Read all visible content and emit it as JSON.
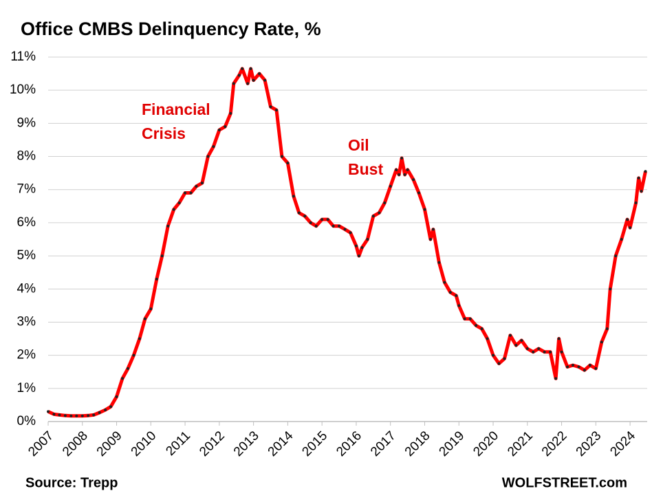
{
  "chart_data": {
    "type": "line",
    "title": "Office CMBS Delinquency Rate, %",
    "source": "Source: Trepp",
    "credit": "WOLFSTREET.com",
    "annotations": [
      {
        "lines": [
          "Financial",
          "Crisis"
        ]
      },
      {
        "lines": [
          "Oil",
          "Bust"
        ]
      }
    ],
    "x": [
      2007.0,
      2007.17,
      2007.33,
      2007.5,
      2007.67,
      2007.83,
      2008.0,
      2008.17,
      2008.33,
      2008.5,
      2008.67,
      2008.83,
      2009.0,
      2009.17,
      2009.33,
      2009.5,
      2009.67,
      2009.83,
      2010.0,
      2010.17,
      2010.33,
      2010.5,
      2010.67,
      2010.83,
      2011.0,
      2011.17,
      2011.33,
      2011.5,
      2011.67,
      2011.83,
      2012.0,
      2012.17,
      2012.33,
      2012.42,
      2012.58,
      2012.67,
      2012.83,
      2012.92,
      2013.0,
      2013.17,
      2013.33,
      2013.5,
      2013.67,
      2013.83,
      2014.0,
      2014.17,
      2014.33,
      2014.5,
      2014.67,
      2014.83,
      2015.0,
      2015.17,
      2015.33,
      2015.5,
      2015.67,
      2015.83,
      2016.0,
      2016.08,
      2016.17,
      2016.33,
      2016.5,
      2016.67,
      2016.83,
      2017.0,
      2017.17,
      2017.25,
      2017.33,
      2017.42,
      2017.5,
      2017.67,
      2017.83,
      2018.0,
      2018.17,
      2018.25,
      2018.42,
      2018.58,
      2018.75,
      2018.92,
      2019.0,
      2019.17,
      2019.33,
      2019.5,
      2019.67,
      2019.83,
      2020.0,
      2020.17,
      2020.33,
      2020.5,
      2020.67,
      2020.83,
      2021.0,
      2021.17,
      2021.33,
      2021.5,
      2021.67,
      2021.83,
      2021.92,
      2022.0,
      2022.17,
      2022.33,
      2022.5,
      2022.67,
      2022.83,
      2023.0,
      2023.17,
      2023.33,
      2023.42,
      2023.58,
      2023.75,
      2023.92,
      2024.0,
      2024.17,
      2024.25,
      2024.33,
      2024.45
    ],
    "values": [
      0.3,
      0.22,
      0.2,
      0.18,
      0.17,
      0.17,
      0.17,
      0.18,
      0.2,
      0.27,
      0.35,
      0.45,
      0.75,
      1.3,
      1.6,
      2.0,
      2.5,
      3.1,
      3.4,
      4.3,
      5.0,
      5.9,
      6.4,
      6.6,
      6.9,
      6.9,
      7.1,
      7.2,
      8.0,
      8.3,
      8.8,
      8.9,
      9.3,
      10.2,
      10.45,
      10.65,
      10.2,
      10.65,
      10.3,
      10.5,
      10.3,
      9.5,
      9.4,
      8.0,
      7.8,
      6.8,
      6.3,
      6.2,
      6.0,
      5.9,
      6.1,
      6.1,
      5.9,
      5.9,
      5.8,
      5.7,
      5.3,
      5.0,
      5.25,
      5.5,
      6.2,
      6.3,
      6.6,
      7.1,
      7.6,
      7.45,
      7.95,
      7.45,
      7.6,
      7.3,
      6.9,
      6.4,
      5.5,
      5.8,
      4.8,
      4.2,
      3.9,
      3.8,
      3.5,
      3.1,
      3.1,
      2.9,
      2.8,
      2.5,
      2.0,
      1.75,
      1.9,
      2.6,
      2.3,
      2.45,
      2.2,
      2.1,
      2.2,
      2.1,
      2.1,
      1.3,
      2.5,
      2.1,
      1.65,
      1.7,
      1.65,
      1.55,
      1.7,
      1.6,
      2.4,
      2.8,
      4.0,
      5.0,
      5.5,
      6.1,
      5.85,
      6.6,
      7.35,
      6.95,
      7.55
    ],
    "color": "#ff0000",
    "marker_color": "#222222",
    "xlim": [
      2007,
      2024.5
    ],
    "xticks": [
      2007,
      2008,
      2009,
      2010,
      2011,
      2012,
      2013,
      2014,
      2015,
      2016,
      2017,
      2018,
      2019,
      2020,
      2021,
      2022,
      2023,
      2024
    ],
    "ylim": [
      0,
      11
    ],
    "yticks": [
      {
        "value": 0,
        "label": "0%"
      },
      {
        "value": 1,
        "label": "1%"
      },
      {
        "value": 2,
        "label": "2%"
      },
      {
        "value": 3,
        "label": "3%"
      },
      {
        "value": 4,
        "label": "4%"
      },
      {
        "value": 5,
        "label": "5%"
      },
      {
        "value": 6,
        "label": "6%"
      },
      {
        "value": 7,
        "label": "7%"
      },
      {
        "value": 8,
        "label": "8%"
      },
      {
        "value": 9,
        "label": "9%"
      },
      {
        "value": 10,
        "label": "10%"
      },
      {
        "value": 11,
        "label": "11%"
      }
    ],
    "grid": true
  }
}
